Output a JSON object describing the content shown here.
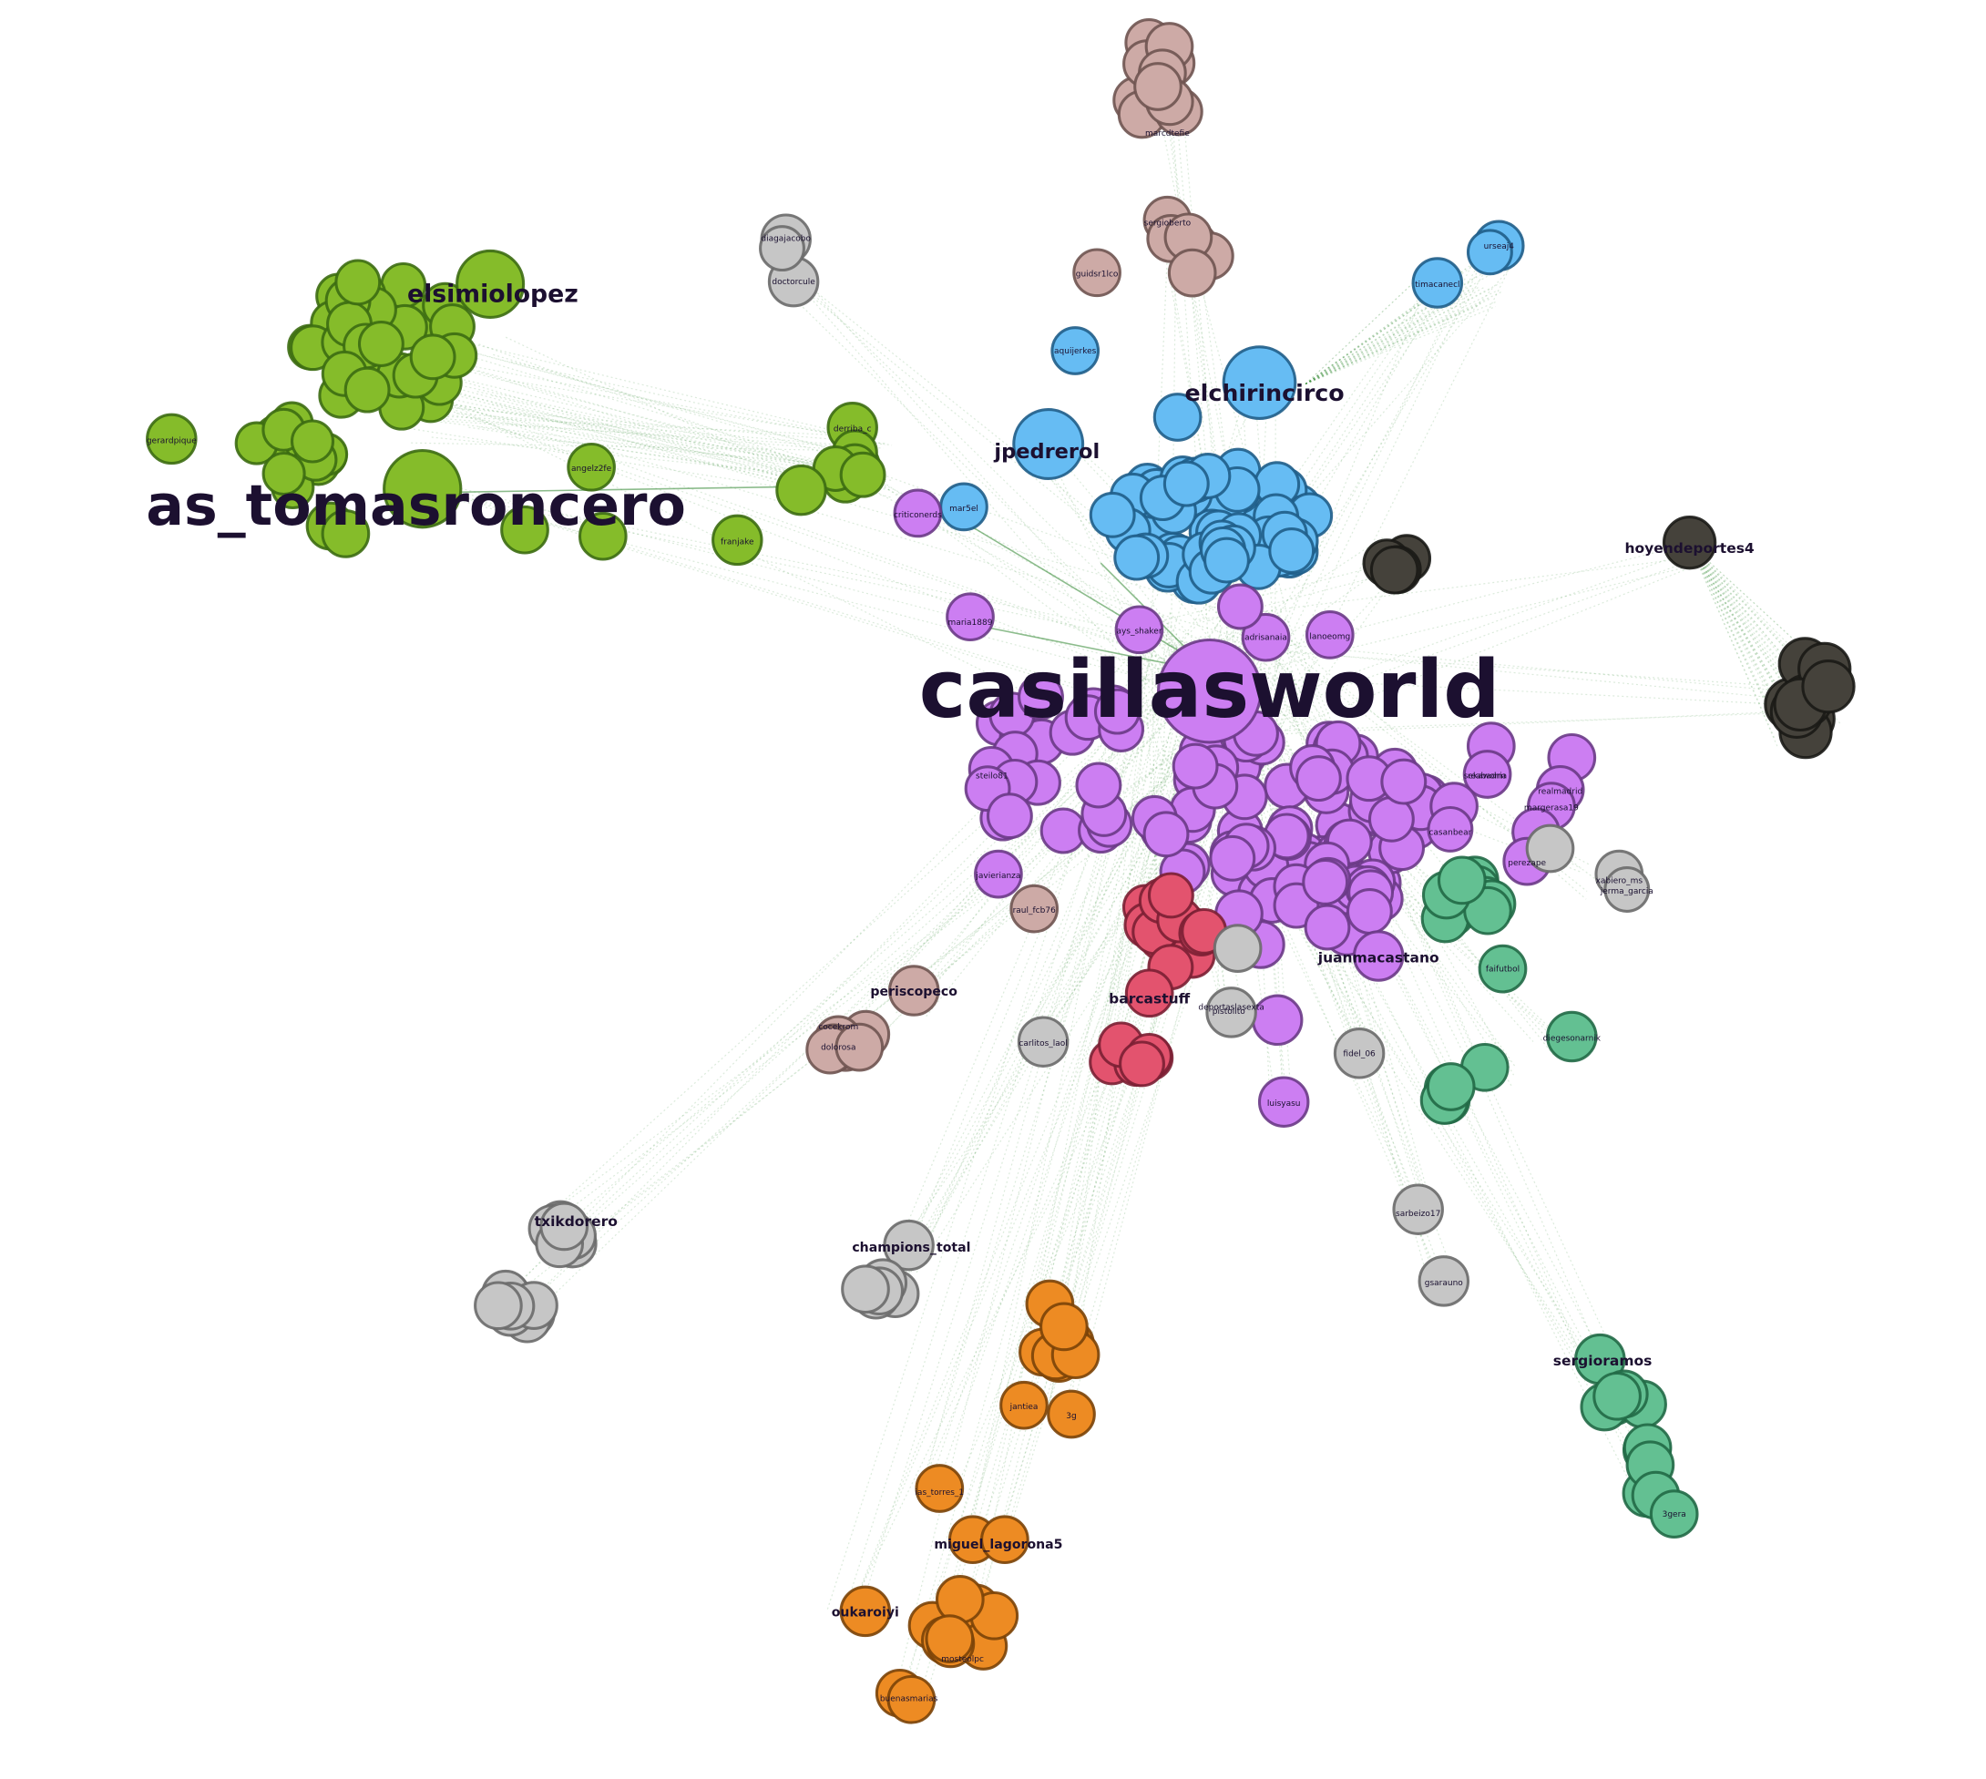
{
  "colors": {
    "green": {
      "fill": "#85bc2a",
      "stroke": "#3c6b12"
    },
    "blue": {
      "fill": "#66bcf3",
      "stroke": "#1f5d88"
    },
    "purple": {
      "fill": "#cc7ef2",
      "stroke": "#6a3a86"
    },
    "gray": {
      "fill": "#c6c6c6",
      "stroke": "#6a6a6a"
    },
    "pink": {
      "fill": "#cdaaa6",
      "stroke": "#6f5451"
    },
    "dark": {
      "fill": "#45423b",
      "stroke": "#1a1916"
    },
    "red": {
      "fill": "#e3536e",
      "stroke": "#7a1f33"
    },
    "teal": {
      "fill": "#63c092",
      "stroke": "#216946"
    },
    "orange": {
      "fill": "#ed8b23",
      "stroke": "#7a4208"
    }
  },
  "major_labels": [
    {
      "id": "casillasworld",
      "text": "casillasworld"
    },
    {
      "id": "as_tomasroncero",
      "text": "as_tomasroncero"
    },
    {
      "id": "elsimiolopez",
      "text": "elsimiolopez"
    },
    {
      "id": "elchirincirco",
      "text": "elchirincirco"
    },
    {
      "id": "jpedrerol",
      "text": "jpedrerol"
    },
    {
      "id": "hoyendeportes4",
      "text": "hoyendeportes4"
    },
    {
      "id": "juanmacastano",
      "text": "juanmacastano"
    },
    {
      "id": "barcastuff",
      "text": "barcastuff"
    },
    {
      "id": "sergioramos",
      "text": "sergioramos"
    },
    {
      "id": "txikdorero",
      "text": "txikdorero"
    },
    {
      "id": "champions_total",
      "text": "champions_total"
    },
    {
      "id": "periscopeco",
      "text": "periscopeco"
    },
    {
      "id": "oukaroiyi",
      "text": "oukaroiyi"
    },
    {
      "id": "miguel_lagorona",
      "text": "miguel_lagorona5"
    }
  ],
  "minor_labels": [
    "diagajacobo",
    "doctorcule",
    "sergioberto",
    "guidsr1lco",
    "marcdtefie",
    "aquijerkes",
    "timacanecl",
    "urseaj4",
    "derriba_c",
    "angelz2fe",
    "franjake",
    "gerardpique",
    "mar5el",
    "criticonerds",
    "maria1889",
    "ays_shaker",
    "adrisanaia",
    "lanoeomg",
    "steilo81",
    "javierianza",
    "raul_fcb76",
    "reabadria",
    "perezape",
    "xabiero_ms",
    "jerma_garcia",
    "faifutbol",
    "diegesonarnik",
    "deportaslasexta",
    "fidel_06",
    "luisyasu",
    "carlitos_laol",
    "cocekrom",
    "dolorosa",
    "sarbeizo17",
    "gsarauno",
    "jantiea",
    "3g",
    "ias_torres_1",
    "mosteolpc",
    "buenasmarias",
    "margerasa19",
    "3gera",
    "casanbear",
    "realmadrid",
    "sekaworm",
    "pistolito"
  ],
  "legend": []
}
